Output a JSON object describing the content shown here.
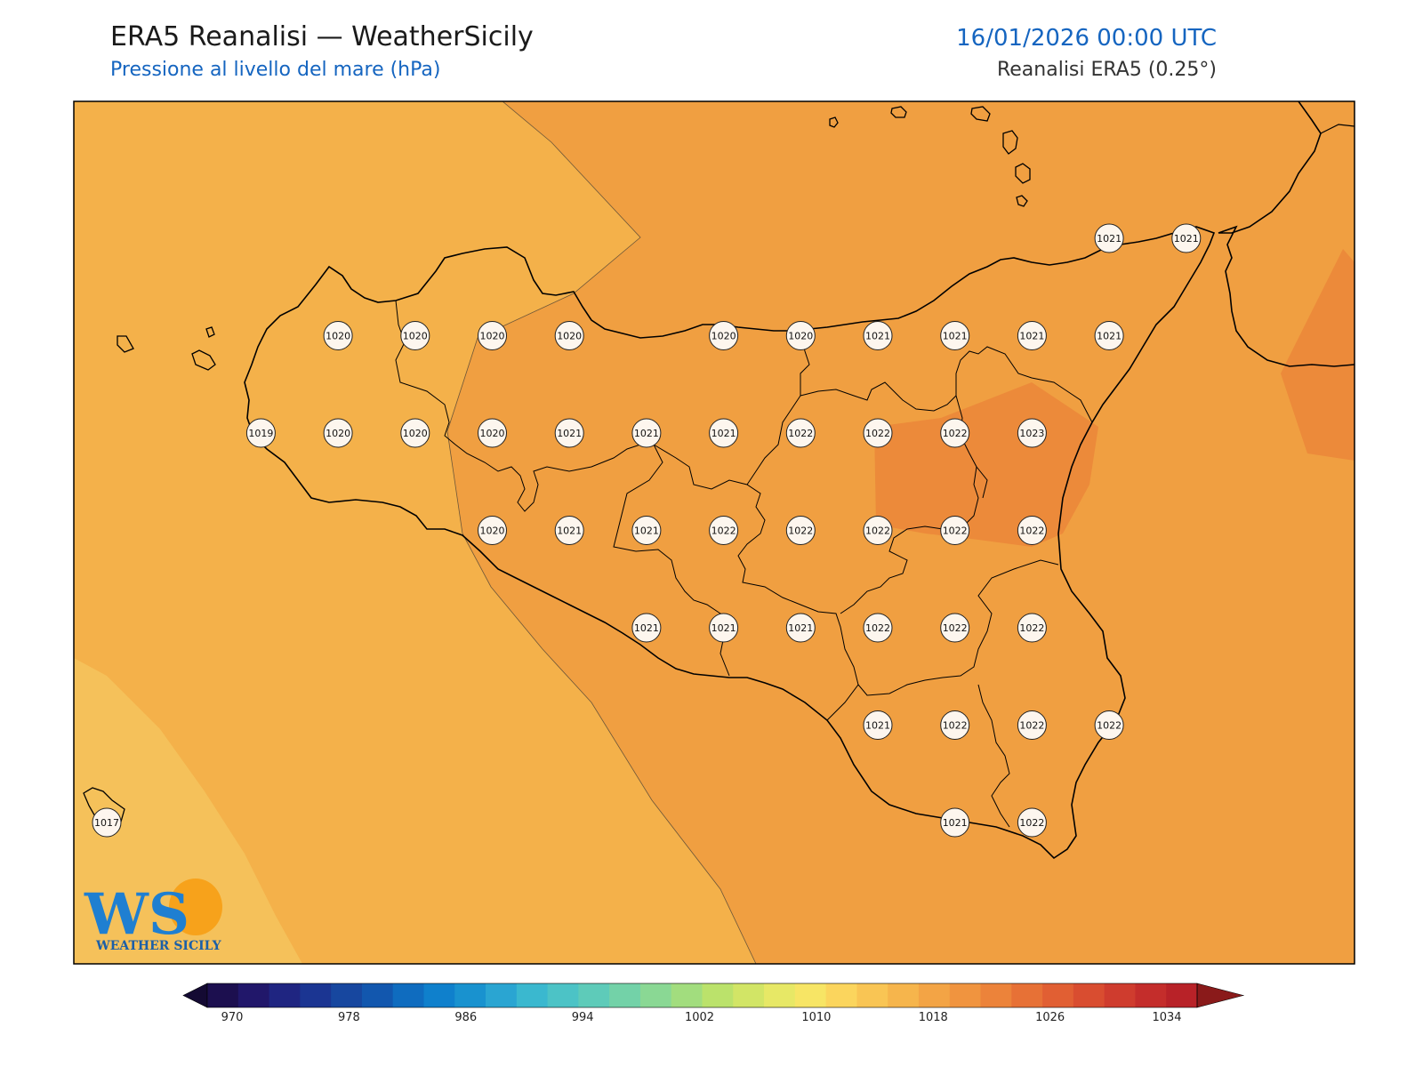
{
  "header": {
    "title": "ERA5 Reanalisi — WeatherSicily",
    "subtitle": "Pressione al livello del mare (hPa)",
    "datetime": "16/01/2026 00:00 UTC",
    "source": "Reanalisi ERA5 (0.25°)"
  },
  "colors": {
    "band_1016": "#f5c15a",
    "band_1018": "#f4b14a",
    "band_1020": "#f09f41",
    "band_1022": "#ec8a3a",
    "coast": "#000000",
    "station_fill": "#fdf6ee"
  },
  "stations": [
    {
      "value": "1021",
      "col": 13,
      "row": 0
    },
    {
      "value": "1021",
      "col": 14,
      "row": 0
    },
    {
      "value": "1020",
      "col": 3,
      "row": 1
    },
    {
      "value": "1020",
      "col": 4,
      "row": 1
    },
    {
      "value": "1020",
      "col": 5,
      "row": 1
    },
    {
      "value": "1020",
      "col": 6,
      "row": 1
    },
    {
      "value": "1020",
      "col": 8,
      "row": 1
    },
    {
      "value": "1020",
      "col": 9,
      "row": 1
    },
    {
      "value": "1021",
      "col": 10,
      "row": 1
    },
    {
      "value": "1021",
      "col": 11,
      "row": 1
    },
    {
      "value": "1021",
      "col": 12,
      "row": 1
    },
    {
      "value": "1021",
      "col": 13,
      "row": 1
    },
    {
      "value": "1019",
      "col": 2,
      "row": 2
    },
    {
      "value": "1020",
      "col": 3,
      "row": 2
    },
    {
      "value": "1020",
      "col": 4,
      "row": 2
    },
    {
      "value": "1020",
      "col": 5,
      "row": 2
    },
    {
      "value": "1021",
      "col": 6,
      "row": 2
    },
    {
      "value": "1021",
      "col": 7,
      "row": 2
    },
    {
      "value": "1021",
      "col": 8,
      "row": 2
    },
    {
      "value": "1022",
      "col": 9,
      "row": 2
    },
    {
      "value": "1022",
      "col": 10,
      "row": 2
    },
    {
      "value": "1022",
      "col": 11,
      "row": 2
    },
    {
      "value": "1023",
      "col": 12,
      "row": 2
    },
    {
      "value": "1020",
      "col": 5,
      "row": 3
    },
    {
      "value": "1021",
      "col": 6,
      "row": 3
    },
    {
      "value": "1021",
      "col": 7,
      "row": 3
    },
    {
      "value": "1022",
      "col": 8,
      "row": 3
    },
    {
      "value": "1022",
      "col": 9,
      "row": 3
    },
    {
      "value": "1022",
      "col": 10,
      "row": 3
    },
    {
      "value": "1022",
      "col": 11,
      "row": 3
    },
    {
      "value": "1022",
      "col": 12,
      "row": 3
    },
    {
      "value": "1021",
      "col": 7,
      "row": 4
    },
    {
      "value": "1021",
      "col": 8,
      "row": 4
    },
    {
      "value": "1021",
      "col": 9,
      "row": 4
    },
    {
      "value": "1022",
      "col": 10,
      "row": 4
    },
    {
      "value": "1022",
      "col": 11,
      "row": 4
    },
    {
      "value": "1022",
      "col": 12,
      "row": 4
    },
    {
      "value": "1021",
      "col": 10,
      "row": 5
    },
    {
      "value": "1022",
      "col": 11,
      "row": 5
    },
    {
      "value": "1022",
      "col": 12,
      "row": 5
    },
    {
      "value": "1022",
      "col": 13,
      "row": 5
    },
    {
      "value": "1021",
      "col": 11,
      "row": 6
    },
    {
      "value": "1022",
      "col": 12,
      "row": 6
    },
    {
      "value": "1017",
      "col": 0,
      "row": 6
    }
  ],
  "colorbar": {
    "ticks": [
      "970",
      "978",
      "986",
      "994",
      "1002",
      "1010",
      "1018",
      "1026",
      "1034"
    ],
    "colors": [
      "#1c0f4f",
      "#21176a",
      "#1f2581",
      "#1b3592",
      "#17479f",
      "#1257ae",
      "#0f6cbf",
      "#0f80cc",
      "#1992cf",
      "#2aa5d2",
      "#3ab8cf",
      "#4cc3c6",
      "#5ecbb9",
      "#73d2a8",
      "#8ad894",
      "#a2dd7e",
      "#bbe26b",
      "#d2e566",
      "#e7e866",
      "#f7e565",
      "#fbd55d",
      "#f9c554",
      "#f6b54c",
      "#f3a445",
      "#f0943f",
      "#ec833a",
      "#e77136",
      "#e15f33",
      "#d94d30",
      "#cf3c2e",
      "#c42d2b",
      "#b82228"
    ],
    "under_color": "#140a33",
    "over_color": "#8a1a1a"
  },
  "logo": {
    "mark": "WS",
    "name": "WEATHER SICILY"
  }
}
